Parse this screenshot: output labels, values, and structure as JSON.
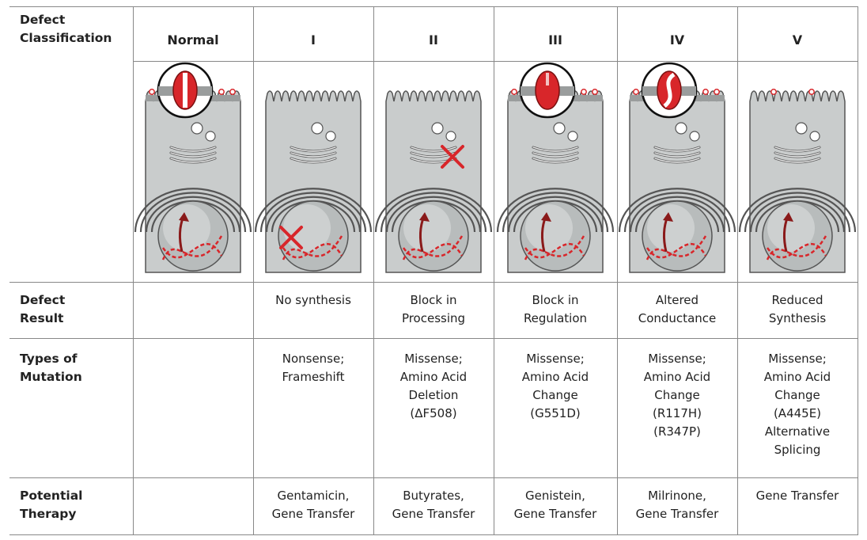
{
  "header_row": {
    "row_label": "Defect\nClassification",
    "columns": [
      "Normal",
      "I",
      "II",
      "III",
      "IV",
      "V"
    ]
  },
  "rows": [
    {
      "key": "defect-result",
      "label": "Defect\nResult",
      "values": [
        "",
        "No synthesis",
        "Block in\nProcessing",
        "Block in\nRegulation",
        "Altered\nConductance",
        "Reduced\nSynthesis"
      ]
    },
    {
      "key": "types-of-mutation",
      "label": "Types of\nMutation",
      "values": [
        "",
        "Nonsense;\nFrameshift",
        "Missense;\nAmino Acid\nDeletion\n(ΔF508)",
        "Missense;\nAmino Acid\nChange\n(G551D)",
        "Missense;\nAmino Acid\nChange\n(R117H)\n(R347P)",
        "Missense;\nAmino Acid\nChange\n(A445E)\nAlternative\nSplicing"
      ]
    },
    {
      "key": "potential-therapy",
      "label": "Potential\nTherapy",
      "values": [
        "",
        "Gentamicin,\nGene Transfer",
        "Butyrates,\nGene Transfer",
        "Genistein,\nGene Transfer",
        "Milrinone,\nGene Transfer",
        "Gene Transfer"
      ]
    }
  ],
  "cells": [
    {
      "column": "Normal",
      "channel_inset": true,
      "channel_state": "open",
      "surface_channels": true,
      "block_mark": "none"
    },
    {
      "column": "I",
      "channel_inset": false,
      "surface_channels": false,
      "block_mark": "nucleus"
    },
    {
      "column": "II",
      "channel_inset": false,
      "surface_channels": false,
      "block_mark": "golgi"
    },
    {
      "column": "III",
      "channel_inset": true,
      "channel_state": "closed",
      "surface_channels": true,
      "block_mark": "none"
    },
    {
      "column": "IV",
      "channel_inset": true,
      "channel_state": "twisted",
      "surface_channels": true,
      "block_mark": "none"
    },
    {
      "column": "V",
      "channel_inset": false,
      "surface_channels": "few",
      "block_mark": "none"
    }
  ],
  "colors": {
    "cell_fill": "#c9cccc",
    "cell_stroke": "#555555",
    "nucleus_fill": "#b8bcbc",
    "accent_red": "#d8262a",
    "grid_line": "#888888"
  }
}
